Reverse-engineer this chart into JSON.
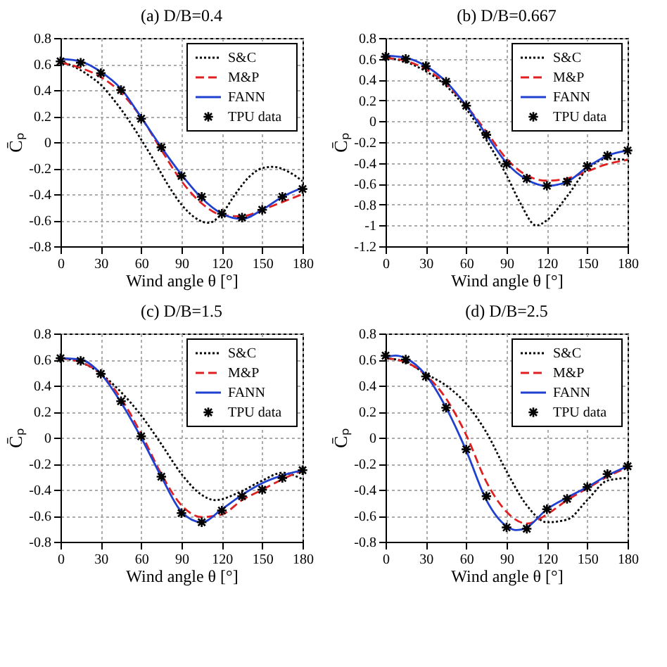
{
  "chart_data": [
    {
      "type": "line",
      "title": "(a) D/B=0.4",
      "xlabel": "Wind angle θ [°]",
      "ylabel": "C̄ₚ",
      "xlim": [
        0,
        180
      ],
      "xticks": [
        0,
        30,
        60,
        90,
        120,
        150,
        180
      ],
      "ylim": [
        -0.8,
        0.8
      ],
      "yticks": [
        -0.8,
        -0.6,
        -0.4,
        -0.2,
        0,
        0.2,
        0.4,
        0.6,
        0.8
      ],
      "grid": true,
      "legend": "top right",
      "series": [
        {
          "name": "S&C",
          "color": "#000000",
          "line_style": "dotted",
          "x": [
            0,
            10,
            20,
            30,
            40,
            50,
            60,
            70,
            80,
            90,
            100,
            110,
            120,
            130,
            140,
            150,
            158,
            170,
            180
          ],
          "values": [
            0.62,
            0.58,
            0.52,
            0.44,
            0.32,
            0.18,
            0.02,
            -0.15,
            -0.33,
            -0.48,
            -0.58,
            -0.62,
            -0.55,
            -0.4,
            -0.27,
            -0.2,
            -0.19,
            -0.23,
            -0.3
          ]
        },
        {
          "name": "M&P",
          "type": "line",
          "color": "#e02020",
          "line_style": "dashed",
          "x": [
            0,
            15,
            30,
            45,
            60,
            75,
            90,
            105,
            120,
            135,
            150,
            165,
            180
          ],
          "values": [
            0.61,
            0.57,
            0.5,
            0.38,
            0.19,
            -0.06,
            -0.3,
            -0.47,
            -0.56,
            -0.57,
            -0.52,
            -0.46,
            -0.4
          ]
        },
        {
          "name": "FANN",
          "type": "line",
          "color": "#2040d0",
          "line_style": "solid",
          "x": [
            0,
            15,
            30,
            45,
            60,
            75,
            90,
            105,
            120,
            135,
            150,
            165,
            180
          ],
          "values": [
            0.64,
            0.62,
            0.54,
            0.41,
            0.19,
            -0.04,
            -0.25,
            -0.43,
            -0.55,
            -0.59,
            -0.52,
            -0.42,
            -0.35
          ]
        },
        {
          "name": "TPU data",
          "type": "scatter",
          "color": "#000000",
          "marker": "cross",
          "x": [
            0,
            15,
            30,
            45,
            60,
            75,
            90,
            105,
            120,
            135,
            150,
            165,
            180
          ],
          "values": [
            0.62,
            0.61,
            0.53,
            0.4,
            0.18,
            -0.04,
            -0.26,
            -0.42,
            -0.55,
            -0.58,
            -0.52,
            -0.42,
            -0.36
          ]
        }
      ]
    },
    {
      "type": "line",
      "title": "(b) D/B=0.667",
      "xlabel": "Wind angle θ [°]",
      "ylabel": "C̄ₚ",
      "xlim": [
        0,
        180
      ],
      "xticks": [
        0,
        30,
        60,
        90,
        120,
        150,
        180
      ],
      "ylim": [
        -1.2,
        0.8
      ],
      "yticks": [
        -1.2,
        -1,
        -0.8,
        -0.6,
        -0.4,
        -0.2,
        0,
        0.2,
        0.4,
        0.6,
        0.8
      ],
      "grid": true,
      "legend": "top right",
      "series": [
        {
          "name": "S&C",
          "color": "#000000",
          "line_style": "dotted",
          "x": [
            0,
            15,
            30,
            45,
            60,
            75,
            90,
            100,
            112,
            120,
            135,
            150,
            165,
            180
          ],
          "values": [
            0.61,
            0.57,
            0.48,
            0.34,
            0.12,
            -0.18,
            -0.52,
            -0.78,
            -1.0,
            -0.95,
            -0.72,
            -0.46,
            -0.36,
            -0.37
          ]
        },
        {
          "name": "M&P",
          "type": "line",
          "color": "#e02020",
          "line_style": "dashed",
          "x": [
            0,
            15,
            30,
            45,
            60,
            75,
            90,
            105,
            120,
            135,
            150,
            165,
            180
          ],
          "values": [
            0.61,
            0.58,
            0.5,
            0.36,
            0.15,
            -0.1,
            -0.36,
            -0.52,
            -0.57,
            -0.55,
            -0.48,
            -0.41,
            -0.37
          ]
        },
        {
          "name": "FANN",
          "type": "line",
          "color": "#2040d0",
          "line_style": "solid",
          "x": [
            0,
            15,
            30,
            45,
            60,
            75,
            90,
            105,
            120,
            135,
            150,
            165,
            180
          ],
          "values": [
            0.63,
            0.61,
            0.53,
            0.38,
            0.15,
            -0.13,
            -0.4,
            -0.56,
            -0.62,
            -0.58,
            -0.44,
            -0.33,
            -0.28
          ]
        },
        {
          "name": "TPU data",
          "type": "scatter",
          "color": "#000000",
          "marker": "cross",
          "x": [
            0,
            15,
            30,
            45,
            60,
            75,
            90,
            105,
            120,
            135,
            150,
            165,
            180
          ],
          "values": [
            0.62,
            0.6,
            0.53,
            0.38,
            0.15,
            -0.13,
            -0.41,
            -0.55,
            -0.62,
            -0.58,
            -0.43,
            -0.33,
            -0.28
          ]
        }
      ]
    },
    {
      "type": "line",
      "title": "(c) D/B=1.5",
      "xlabel": "Wind angle θ [°]",
      "ylabel": "C̄ₚ",
      "xlim": [
        0,
        180
      ],
      "xticks": [
        0,
        30,
        60,
        90,
        120,
        150,
        180
      ],
      "ylim": [
        -0.8,
        0.8
      ],
      "yticks": [
        -0.8,
        -0.6,
        -0.4,
        -0.2,
        0,
        0.2,
        0.4,
        0.6,
        0.8
      ],
      "grid": true,
      "legend": "top right",
      "series": [
        {
          "name": "S&C",
          "color": "#000000",
          "line_style": "dotted",
          "x": [
            0,
            15,
            30,
            45,
            60,
            75,
            90,
            105,
            115,
            135,
            150,
            165,
            180
          ],
          "values": [
            0.61,
            0.58,
            0.49,
            0.35,
            0.17,
            -0.05,
            -0.28,
            -0.44,
            -0.48,
            -0.41,
            -0.33,
            -0.27,
            -0.32
          ]
        },
        {
          "name": "M&P",
          "type": "line",
          "color": "#e02020",
          "line_style": "dashed",
          "x": [
            0,
            15,
            30,
            45,
            60,
            75,
            90,
            105,
            120,
            135,
            150,
            165,
            180
          ],
          "values": [
            0.61,
            0.58,
            0.49,
            0.3,
            0.03,
            -0.28,
            -0.52,
            -0.61,
            -0.59,
            -0.48,
            -0.4,
            -0.32,
            -0.25
          ]
        },
        {
          "name": "FANN",
          "type": "line",
          "color": "#2040d0",
          "line_style": "solid",
          "x": [
            0,
            15,
            30,
            45,
            60,
            75,
            90,
            105,
            120,
            135,
            150,
            165,
            180
          ],
          "values": [
            0.61,
            0.6,
            0.49,
            0.27,
            0.0,
            -0.3,
            -0.57,
            -0.65,
            -0.55,
            -0.44,
            -0.35,
            -0.29,
            -0.25
          ]
        },
        {
          "name": "TPU data",
          "type": "scatter",
          "color": "#000000",
          "marker": "cross",
          "x": [
            0,
            15,
            30,
            45,
            60,
            75,
            90,
            105,
            120,
            135,
            150,
            165,
            180
          ],
          "values": [
            0.61,
            0.59,
            0.49,
            0.28,
            0.01,
            -0.3,
            -0.58,
            -0.65,
            -0.56,
            -0.45,
            -0.4,
            -0.31,
            -0.25
          ]
        }
      ]
    },
    {
      "type": "line",
      "title": "(d) D/B=2.5",
      "xlabel": "Wind angle θ [°]",
      "ylabel": "C̄ₚ",
      "xlim": [
        0,
        180
      ],
      "xticks": [
        0,
        30,
        60,
        90,
        120,
        150,
        180
      ],
      "ylim": [
        -0.8,
        0.8
      ],
      "yticks": [
        -0.8,
        -0.6,
        -0.4,
        -0.2,
        0,
        0.2,
        0.4,
        0.6,
        0.8
      ],
      "grid": true,
      "legend": "top right",
      "series": [
        {
          "name": "S&C",
          "color": "#000000",
          "line_style": "dotted",
          "x": [
            0,
            15,
            30,
            45,
            60,
            75,
            90,
            105,
            120,
            135,
            150,
            165,
            180
          ],
          "values": [
            0.61,
            0.58,
            0.49,
            0.4,
            0.26,
            0.04,
            -0.26,
            -0.52,
            -0.65,
            -0.63,
            -0.48,
            -0.33,
            -0.31
          ]
        },
        {
          "name": "M&P",
          "type": "line",
          "color": "#e02020",
          "line_style": "dashed",
          "x": [
            0,
            15,
            30,
            45,
            60,
            75,
            90,
            105,
            120,
            135,
            150,
            165,
            180
          ],
          "values": [
            0.61,
            0.58,
            0.48,
            0.3,
            0.02,
            -0.34,
            -0.57,
            -0.66,
            -0.59,
            -0.48,
            -0.39,
            -0.3,
            -0.23
          ]
        },
        {
          "name": "FANN",
          "type": "line",
          "color": "#2040d0",
          "line_style": "solid",
          "x": [
            0,
            7.5,
            15,
            30,
            45,
            60,
            75,
            90,
            97,
            105,
            120,
            135,
            150,
            165,
            180
          ],
          "values": [
            0.62,
            0.63,
            0.61,
            0.48,
            0.23,
            -0.1,
            -0.48,
            -0.68,
            -0.71,
            -0.69,
            -0.55,
            -0.46,
            -0.38,
            -0.29,
            -0.22
          ]
        },
        {
          "name": "TPU data",
          "type": "scatter",
          "color": "#000000",
          "marker": "cross",
          "x": [
            0,
            15,
            30,
            45,
            60,
            75,
            90,
            105,
            120,
            135,
            150,
            165,
            180
          ],
          "values": [
            0.63,
            0.6,
            0.47,
            0.23,
            -0.09,
            -0.45,
            -0.69,
            -0.7,
            -0.55,
            -0.47,
            -0.38,
            -0.28,
            -0.22
          ]
        }
      ]
    }
  ]
}
